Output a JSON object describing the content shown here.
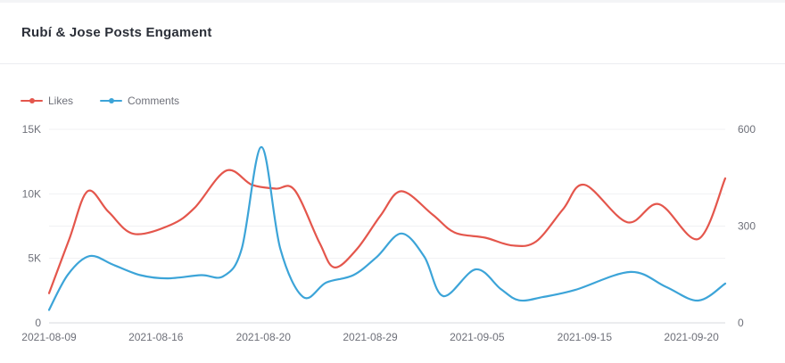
{
  "page": {
    "title": "Rubí & Jose Posts Engament"
  },
  "legend": {
    "items": [
      {
        "label": "Likes",
        "color": "#e4564c"
      },
      {
        "label": "Comments",
        "color": "#3ca4d8"
      }
    ]
  },
  "chart_data": {
    "type": "line",
    "title": "Rubí & Jose Posts Engament",
    "smooth": true,
    "grid": true,
    "show_symbols": false,
    "legend_position": "top-left",
    "x_axis": {
      "tick_labels": [
        "2021-08-09",
        "2021-08-16",
        "2021-08-20",
        "2021-08-29",
        "2021-09-05",
        "2021-09-15",
        "2021-09-20"
      ],
      "tick_positions": [
        0.0,
        0.158,
        0.317,
        0.475,
        0.633,
        0.792,
        0.95
      ]
    },
    "y_axis_left": {
      "title": "Likes",
      "min": 0,
      "max": 15000,
      "ticks": [
        0,
        5000,
        10000,
        15000
      ],
      "tick_labels": [
        "0",
        "5K",
        "10K",
        "15K"
      ]
    },
    "y_axis_right": {
      "title": "Comments",
      "min": 0,
      "max": 600,
      "ticks": [
        0,
        300,
        600
      ],
      "tick_labels": [
        "0",
        "300",
        "600"
      ]
    },
    "series": [
      {
        "name": "Likes",
        "axis": "left",
        "color": "#e4564c",
        "points": [
          [
            0.0,
            2300
          ],
          [
            0.03,
            6500
          ],
          [
            0.057,
            10200
          ],
          [
            0.088,
            8600
          ],
          [
            0.125,
            6900
          ],
          [
            0.18,
            7600
          ],
          [
            0.215,
            8900
          ],
          [
            0.262,
            11800
          ],
          [
            0.3,
            10700
          ],
          [
            0.335,
            10400
          ],
          [
            0.363,
            10300
          ],
          [
            0.4,
            6200
          ],
          [
            0.422,
            4300
          ],
          [
            0.455,
            5700
          ],
          [
            0.49,
            8300
          ],
          [
            0.521,
            10200
          ],
          [
            0.567,
            8400
          ],
          [
            0.6,
            7000
          ],
          [
            0.645,
            6600
          ],
          [
            0.685,
            6000
          ],
          [
            0.72,
            6300
          ],
          [
            0.76,
            8800
          ],
          [
            0.792,
            10700
          ],
          [
            0.855,
            7800
          ],
          [
            0.902,
            9200
          ],
          [
            0.96,
            6500
          ],
          [
            1.0,
            11200
          ]
        ]
      },
      {
        "name": "Comments",
        "axis": "right",
        "color": "#3ca4d8",
        "points": [
          [
            0.0,
            40
          ],
          [
            0.028,
            150
          ],
          [
            0.06,
            207
          ],
          [
            0.095,
            180
          ],
          [
            0.135,
            148
          ],
          [
            0.175,
            138
          ],
          [
            0.225,
            148
          ],
          [
            0.258,
            145
          ],
          [
            0.285,
            230
          ],
          [
            0.314,
            545
          ],
          [
            0.342,
            230
          ],
          [
            0.376,
            80
          ],
          [
            0.41,
            125
          ],
          [
            0.45,
            148
          ],
          [
            0.485,
            205
          ],
          [
            0.521,
            277
          ],
          [
            0.555,
            205
          ],
          [
            0.583,
            83
          ],
          [
            0.631,
            166
          ],
          [
            0.668,
            105
          ],
          [
            0.695,
            70
          ],
          [
            0.73,
            80
          ],
          [
            0.778,
            102
          ],
          [
            0.86,
            158
          ],
          [
            0.912,
            112
          ],
          [
            0.96,
            69
          ],
          [
            1.0,
            122
          ]
        ]
      }
    ]
  }
}
